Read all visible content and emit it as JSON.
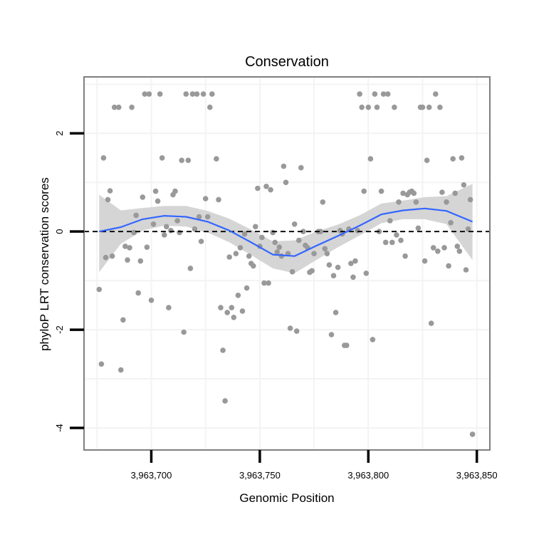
{
  "chart_data": {
    "type": "scatter",
    "title": "Conservation",
    "xlabel": "Genomic Position",
    "ylabel": "phyloP LRT conservation scores",
    "xlim": [
      3963669,
      3963856
    ],
    "ylim": [
      -4.45,
      3.15
    ],
    "x_ticks": [
      3963700,
      3963750,
      3963800,
      3963850
    ],
    "x_tick_labels": [
      "3,963,700",
      "3,963,750",
      "3,963,800",
      "3,963,850"
    ],
    "y_ticks": [
      -4,
      -2,
      0,
      2
    ],
    "y_tick_labels": [
      "-4",
      "-2",
      "0",
      "2"
    ],
    "reference_line": {
      "y": 0,
      "style": "dashed"
    },
    "colors": {
      "points": "#999999",
      "smooth": "#3366ff",
      "band": "#d3d3d3",
      "frame": "#7f7f7f",
      "grid": "#f3f3f3"
    },
    "points": [
      [
        3963676,
        -1.18
      ],
      [
        3963677,
        -2.7
      ],
      [
        3963678,
        1.5
      ],
      [
        3963679,
        -0.53
      ],
      [
        3963680,
        0.65
      ],
      [
        3963681,
        0.83
      ],
      [
        3963682,
        -0.5
      ],
      [
        3963683,
        2.53
      ],
      [
        3963685,
        2.53
      ],
      [
        3963686,
        -2.82
      ],
      [
        3963687,
        -1.8
      ],
      [
        3963688,
        -0.3
      ],
      [
        3963689,
        -0.58
      ],
      [
        3963690,
        -0.33
      ],
      [
        3963691,
        2.53
      ],
      [
        3963692,
        -0.02
      ],
      [
        3963693,
        0.33
      ],
      [
        3963694,
        -1.25
      ],
      [
        3963695,
        -0.6
      ],
      [
        3963696,
        0.7
      ],
      [
        3963697,
        2.8
      ],
      [
        3963698,
        -0.32
      ],
      [
        3963699,
        2.8
      ],
      [
        3963700,
        -1.4
      ],
      [
        3963701,
        0.15
      ],
      [
        3963702,
        0.82
      ],
      [
        3963703,
        0.62
      ],
      [
        3963704,
        2.8
      ],
      [
        3963705,
        1.5
      ],
      [
        3963706,
        -0.07
      ],
      [
        3963707,
        0.1
      ],
      [
        3963708,
        -1.55
      ],
      [
        3963709,
        0.02
      ],
      [
        3963710,
        0.75
      ],
      [
        3963711,
        0.82
      ],
      [
        3963712,
        0.22
      ],
      [
        3963713,
        -0.02
      ],
      [
        3963714,
        1.45
      ],
      [
        3963715,
        -2.05
      ],
      [
        3963716,
        2.8
      ],
      [
        3963717,
        1.45
      ],
      [
        3963718,
        -0.75
      ],
      [
        3963719,
        2.8
      ],
      [
        3963720,
        0.05
      ],
      [
        3963721,
        2.8
      ],
      [
        3963722,
        0.3
      ],
      [
        3963723,
        -0.2
      ],
      [
        3963724,
        2.8
      ],
      [
        3963725,
        0.67
      ],
      [
        3963726,
        0.3
      ],
      [
        3963727,
        2.53
      ],
      [
        3963728,
        2.8
      ],
      [
        3963730,
        1.48
      ],
      [
        3963731,
        0.65
      ],
      [
        3963732,
        -1.55
      ],
      [
        3963733,
        -2.42
      ],
      [
        3963734,
        -3.45
      ],
      [
        3963735,
        -1.65
      ],
      [
        3963736,
        -0.52
      ],
      [
        3963737,
        -1.55
      ],
      [
        3963738,
        -1.75
      ],
      [
        3963739,
        -0.45
      ],
      [
        3963740,
        -1.3
      ],
      [
        3963741,
        -0.33
      ],
      [
        3963742,
        -1.62
      ],
      [
        3963743,
        -0.05
      ],
      [
        3963744,
        -1.15
      ],
      [
        3963745,
        -0.5
      ],
      [
        3963746,
        -0.65
      ],
      [
        3963747,
        -0.7
      ],
      [
        3963748,
        0.1
      ],
      [
        3963749,
        0.88
      ],
      [
        3963750,
        -0.3
      ],
      [
        3963751,
        -0.12
      ],
      [
        3963752,
        -1.05
      ],
      [
        3963753,
        0.92
      ],
      [
        3963754,
        -1.05
      ],
      [
        3963755,
        0.85
      ],
      [
        3963756,
        -0.02
      ],
      [
        3963757,
        -0.22
      ],
      [
        3963758,
        -0.42
      ],
      [
        3963759,
        -0.32
      ],
      [
        3963760,
        -0.5
      ],
      [
        3963761,
        1.33
      ],
      [
        3963762,
        1.0
      ],
      [
        3963763,
        -0.45
      ],
      [
        3963764,
        -1.97
      ],
      [
        3963765,
        -0.82
      ],
      [
        3963766,
        0.15
      ],
      [
        3963767,
        -2.03
      ],
      [
        3963768,
        -0.18
      ],
      [
        3963769,
        1.3
      ],
      [
        3963770,
        0.0
      ],
      [
        3963771,
        -0.28
      ],
      [
        3963772,
        -0.33
      ],
      [
        3963773,
        -0.83
      ],
      [
        3963774,
        -0.8
      ],
      [
        3963775,
        -0.45
      ],
      [
        3963777,
        0.0
      ],
      [
        3963778,
        0.0
      ],
      [
        3963779,
        0.6
      ],
      [
        3963780,
        -0.35
      ],
      [
        3963781,
        -0.45
      ],
      [
        3963782,
        -0.68
      ],
      [
        3963783,
        -2.1
      ],
      [
        3963784,
        -0.9
      ],
      [
        3963785,
        -1.65
      ],
      [
        3963786,
        -0.73
      ],
      [
        3963787,
        0.02
      ],
      [
        3963788,
        -0.05
      ],
      [
        3963789,
        -2.32
      ],
      [
        3963790,
        -2.32
      ],
      [
        3963791,
        0.05
      ],
      [
        3963792,
        -0.65
      ],
      [
        3963793,
        -0.93
      ],
      [
        3963794,
        -0.6
      ],
      [
        3963795,
        0.02
      ],
      [
        3963796,
        2.8
      ],
      [
        3963797,
        2.53
      ],
      [
        3963798,
        0.82
      ],
      [
        3963799,
        -0.85
      ],
      [
        3963800,
        2.53
      ],
      [
        3963801,
        1.48
      ],
      [
        3963802,
        -2.2
      ],
      [
        3963803,
        2.8
      ],
      [
        3963804,
        2.53
      ],
      [
        3963805,
        0.0
      ],
      [
        3963806,
        0.82
      ],
      [
        3963807,
        2.8
      ],
      [
        3963808,
        -0.22
      ],
      [
        3963809,
        2.8
      ],
      [
        3963810,
        0.22
      ],
      [
        3963811,
        -0.22
      ],
      [
        3963812,
        2.53
      ],
      [
        3963813,
        -0.07
      ],
      [
        3963814,
        0.6
      ],
      [
        3963815,
        -0.18
      ],
      [
        3963816,
        0.78
      ],
      [
        3963817,
        -0.5
      ],
      [
        3963818,
        0.75
      ],
      [
        3963819,
        0.8
      ],
      [
        3963820,
        0.82
      ],
      [
        3963821,
        0.78
      ],
      [
        3963822,
        0.6
      ],
      [
        3963823,
        0.07
      ],
      [
        3963824,
        2.53
      ],
      [
        3963825,
        2.53
      ],
      [
        3963826,
        -0.6
      ],
      [
        3963827,
        1.45
      ],
      [
        3963828,
        2.53
      ],
      [
        3963829,
        -1.87
      ],
      [
        3963830,
        -0.33
      ],
      [
        3963831,
        2.8
      ],
      [
        3963832,
        -0.4
      ],
      [
        3963833,
        2.53
      ],
      [
        3963834,
        0.8
      ],
      [
        3963835,
        -0.33
      ],
      [
        3963836,
        0.6
      ],
      [
        3963837,
        -0.7
      ],
      [
        3963838,
        0.18
      ],
      [
        3963839,
        1.48
      ],
      [
        3963840,
        0.78
      ],
      [
        3963841,
        -0.3
      ],
      [
        3963842,
        -0.4
      ],
      [
        3963843,
        1.5
      ],
      [
        3963844,
        0.95
      ],
      [
        3963845,
        -0.78
      ],
      [
        3963846,
        0.05
      ],
      [
        3963847,
        0.65
      ],
      [
        3963848,
        -4.13
      ]
    ],
    "smooth": {
      "x": [
        3963676,
        3963686,
        3963696,
        3963706,
        3963716,
        3963726,
        3963736,
        3963746,
        3963756,
        3963766,
        3963776,
        3963786,
        3963796,
        3963806,
        3963816,
        3963826,
        3963836,
        3963848
      ],
      "y": [
        0.0,
        0.09,
        0.25,
        0.32,
        0.3,
        0.2,
        0.02,
        -0.22,
        -0.47,
        -0.5,
        -0.29,
        -0.09,
        0.12,
        0.35,
        0.43,
        0.47,
        0.42,
        0.2
      ],
      "lower": [
        -0.83,
        -0.25,
        0.02,
        0.12,
        0.1,
        -0.02,
        -0.22,
        -0.48,
        -0.75,
        -0.85,
        -0.58,
        -0.32,
        -0.08,
        0.17,
        0.25,
        0.25,
        0.15,
        -0.58
      ],
      "upper": [
        0.75,
        0.43,
        0.48,
        0.52,
        0.52,
        0.42,
        0.26,
        0.04,
        -0.2,
        -0.18,
        0.0,
        0.14,
        0.33,
        0.57,
        0.63,
        0.7,
        0.72,
        0.97
      ]
    }
  }
}
